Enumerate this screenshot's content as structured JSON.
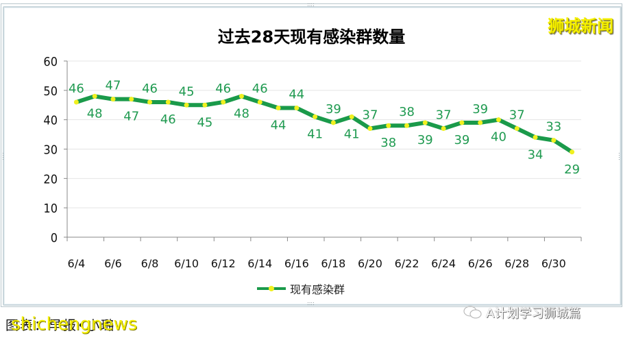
{
  "page": {
    "brand_watermark": "狮城新闻",
    "caption": "图表：早报•小璐",
    "caption_watermark": "shichengnews",
    "source_watermark": "A计划学习狮城篇"
  },
  "chart_data": {
    "type": "line",
    "title": "过去28天现有感染群数量",
    "xlabel": "",
    "ylabel": "",
    "ylim": [
      0,
      60
    ],
    "yticks": [
      0,
      10,
      20,
      30,
      40,
      50,
      60
    ],
    "x": [
      "6/4",
      "6/5",
      "6/6",
      "6/7",
      "6/8",
      "6/9",
      "6/10",
      "6/11",
      "6/12",
      "6/13",
      "6/14",
      "6/15",
      "6/16",
      "6/17",
      "6/18",
      "6/19",
      "6/20",
      "6/21",
      "6/22",
      "6/23",
      "6/24",
      "6/25",
      "6/26",
      "6/27",
      "6/28",
      "6/29",
      "6/30",
      "7/1"
    ],
    "xtick_labels": [
      "6/4",
      "6/6",
      "6/8",
      "6/10",
      "6/12",
      "6/14",
      "6/16",
      "6/18",
      "6/20",
      "6/22",
      "6/24",
      "6/26",
      "6/28",
      "6/30"
    ],
    "series": [
      {
        "name": "现有感染群",
        "values": [
          46,
          48,
          47,
          47,
          46,
          46,
          45,
          45,
          46,
          48,
          46,
          44,
          44,
          41,
          39,
          41,
          37,
          38,
          38,
          39,
          37,
          39,
          39,
          40,
          37,
          34,
          33,
          29
        ],
        "line_color": "#1a9a4a",
        "marker_color": "#f0f020",
        "label_color": "#1f9a50"
      }
    ],
    "grid": true,
    "legend_position": "bottom"
  }
}
